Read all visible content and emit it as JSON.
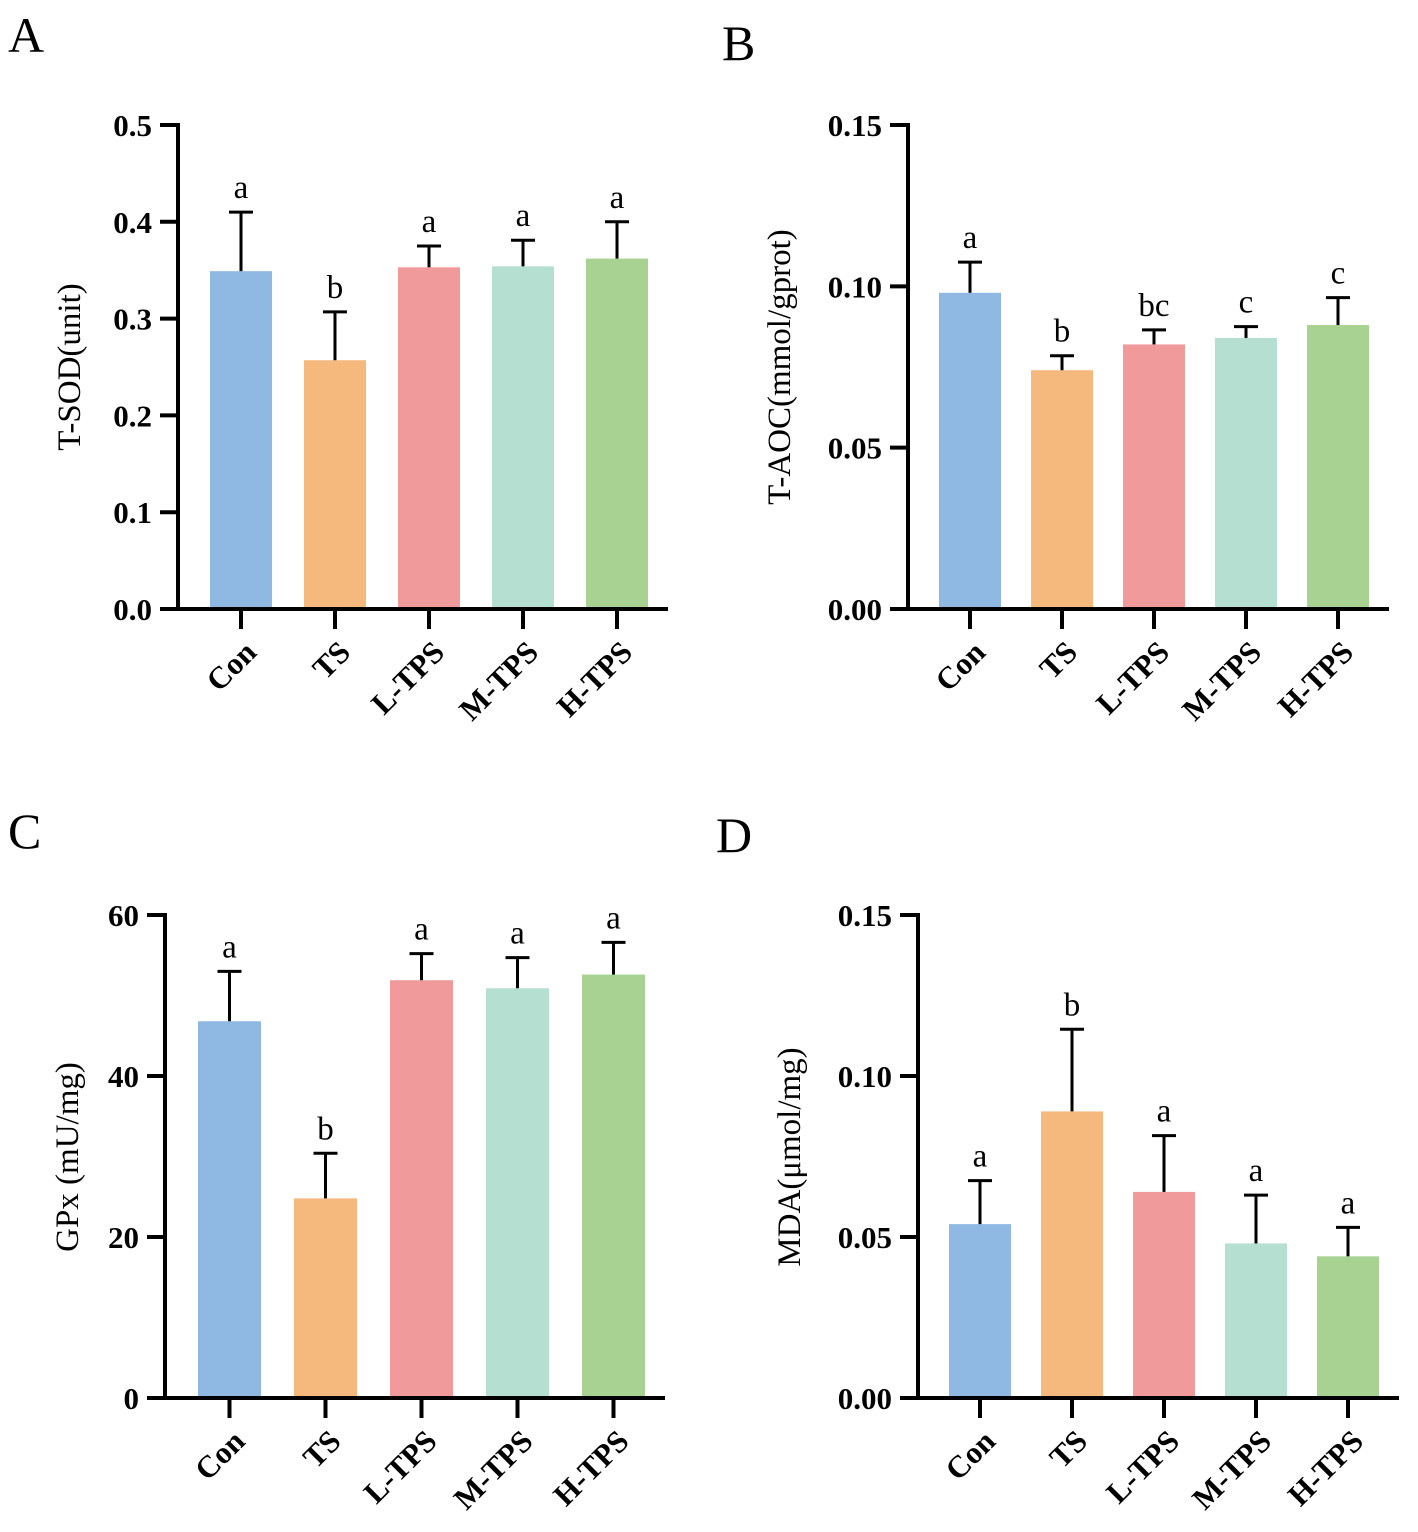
{
  "figure": {
    "categories": [
      "Con",
      "TS",
      "L-TPS",
      "M-TPS",
      "H-TPS"
    ],
    "bar_colors": [
      "#8fb8e3",
      "#f5b97e",
      "#f09a9c",
      "#b5dfd1",
      "#a8d291"
    ]
  },
  "chart_data": [
    {
      "panel": "A",
      "type": "bar",
      "ylabel": "T-SOD(unit)",
      "ylim": [
        0,
        0.5
      ],
      "yticks": [
        0.0,
        0.1,
        0.2,
        0.3,
        0.4,
        0.5
      ],
      "ytick_labels": [
        "0.0",
        "0.1",
        "0.2",
        "0.3",
        "0.4",
        "0.5"
      ],
      "categories": [
        "Con",
        "TS",
        "L-TPS",
        "M-TPS",
        "H-TPS"
      ],
      "values": [
        0.349,
        0.257,
        0.353,
        0.354,
        0.362
      ],
      "errors": [
        0.061,
        0.05,
        0.022,
        0.027,
        0.038
      ],
      "significance": [
        "a",
        "b",
        "a",
        "a",
        "a"
      ]
    },
    {
      "panel": "B",
      "type": "bar",
      "ylabel": "T-AOC(mmol/gprot)",
      "ylim": [
        0,
        0.15
      ],
      "yticks": [
        0.0,
        0.05,
        0.1,
        0.15
      ],
      "ytick_labels": [
        "0.00",
        "0.05",
        "0.10",
        "0.15"
      ],
      "categories": [
        "Con",
        "TS",
        "L-TPS",
        "M-TPS",
        "H-TPS"
      ],
      "values": [
        0.098,
        0.074,
        0.082,
        0.084,
        0.088
      ],
      "errors": [
        0.0095,
        0.0045,
        0.0045,
        0.0035,
        0.0085
      ],
      "significance": [
        "a",
        "b",
        "bc",
        "c",
        "c"
      ]
    },
    {
      "panel": "C",
      "type": "bar",
      "ylabel": "GPx (mU/mg)",
      "ylim": [
        0,
        60
      ],
      "yticks": [
        0,
        20,
        40,
        60
      ],
      "ytick_labels": [
        "0",
        "20",
        "40",
        "60"
      ],
      "categories": [
        "Con",
        "TS",
        "L-TPS",
        "M-TPS",
        "H-TPS"
      ],
      "values": [
        46.8,
        24.8,
        51.9,
        50.9,
        52.6
      ],
      "errors": [
        6.2,
        5.6,
        3.3,
        3.8,
        4.0
      ],
      "significance": [
        "a",
        "b",
        "a",
        "a",
        "a"
      ]
    },
    {
      "panel": "D",
      "type": "bar",
      "ylabel": "MDA(μmol/mg)",
      "ylim": [
        0,
        0.15
      ],
      "yticks": [
        0.0,
        0.05,
        0.1,
        0.15
      ],
      "ytick_labels": [
        "0.00",
        "0.05",
        "0.10",
        "0.15"
      ],
      "categories": [
        "Con",
        "TS",
        "L-TPS",
        "M-TPS",
        "H-TPS"
      ],
      "values": [
        0.054,
        0.089,
        0.064,
        0.048,
        0.044
      ],
      "errors": [
        0.0135,
        0.0255,
        0.0175,
        0.015,
        0.009
      ],
      "significance": [
        "a",
        "b",
        "a",
        "a",
        "a"
      ]
    }
  ]
}
